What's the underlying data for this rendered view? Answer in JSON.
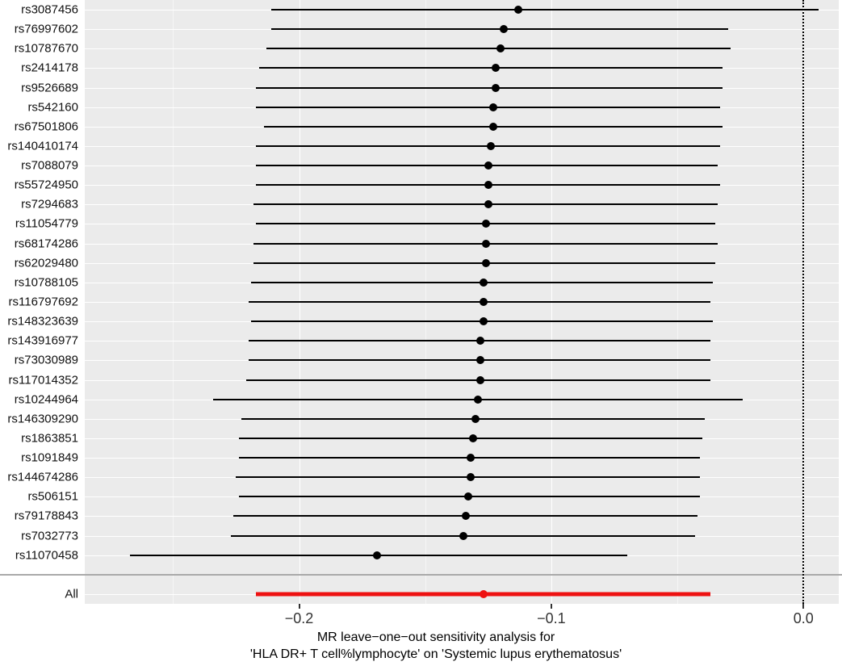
{
  "figure": {
    "xtitle_line1": "MR leave−one−out sensitivity analysis for",
    "xtitle_line2": "'HLA DR+ T cell%lymphocyte' on 'Systemic lupus erythematosus'"
  },
  "chart_data": {
    "type": "scatter",
    "subtype": "forest-leave-one-out",
    "title": "",
    "xlabel": "MR leave−one−out sensitivity analysis for 'HLA DR+ T cell%lymphocyte' on 'Systemic lupus erythematosus'",
    "ylabel": "",
    "xlim": [
      -0.285,
      0.014
    ],
    "xticks": [
      -0.2,
      -0.1,
      0.0
    ],
    "xtick_labels": [
      "−0.2",
      "−0.1",
      "0.0"
    ],
    "xticks_minor": [
      -0.25,
      -0.15,
      -0.05
    ],
    "zero_line": 0,
    "grid": true,
    "legend": "none",
    "panel_bg": "#EBEBEB",
    "grid_color": "#FFFFFF",
    "separator_color": "#A9A9A9",
    "point_color": "#000000",
    "all_color": "#EE1111",
    "rows": [
      {
        "label": "rs3087456",
        "estimate": -0.113,
        "lo": -0.211,
        "hi": 0.006
      },
      {
        "label": "rs76997602",
        "estimate": -0.119,
        "lo": -0.211,
        "hi": -0.03
      },
      {
        "label": "rs10787670",
        "estimate": -0.12,
        "lo": -0.213,
        "hi": -0.029
      },
      {
        "label": "rs2414178",
        "estimate": -0.122,
        "lo": -0.216,
        "hi": -0.032
      },
      {
        "label": "rs9526689",
        "estimate": -0.122,
        "lo": -0.217,
        "hi": -0.032
      },
      {
        "label": "rs542160",
        "estimate": -0.123,
        "lo": -0.217,
        "hi": -0.033
      },
      {
        "label": "rs67501806",
        "estimate": -0.123,
        "lo": -0.214,
        "hi": -0.032
      },
      {
        "label": "rs140410174",
        "estimate": -0.124,
        "lo": -0.217,
        "hi": -0.033
      },
      {
        "label": "rs7088079",
        "estimate": -0.125,
        "lo": -0.217,
        "hi": -0.034
      },
      {
        "label": "rs55724950",
        "estimate": -0.125,
        "lo": -0.217,
        "hi": -0.033
      },
      {
        "label": "rs7294683",
        "estimate": -0.125,
        "lo": -0.218,
        "hi": -0.034
      },
      {
        "label": "rs11054779",
        "estimate": -0.126,
        "lo": -0.217,
        "hi": -0.035
      },
      {
        "label": "rs68174286",
        "estimate": -0.126,
        "lo": -0.218,
        "hi": -0.034
      },
      {
        "label": "rs62029480",
        "estimate": -0.126,
        "lo": -0.218,
        "hi": -0.035
      },
      {
        "label": "rs10788105",
        "estimate": -0.127,
        "lo": -0.219,
        "hi": -0.036
      },
      {
        "label": "rs116797692",
        "estimate": -0.127,
        "lo": -0.22,
        "hi": -0.037
      },
      {
        "label": "rs148323639",
        "estimate": -0.127,
        "lo": -0.219,
        "hi": -0.036
      },
      {
        "label": "rs143916977",
        "estimate": -0.128,
        "lo": -0.22,
        "hi": -0.037
      },
      {
        "label": "rs73030989",
        "estimate": -0.128,
        "lo": -0.22,
        "hi": -0.037
      },
      {
        "label": "rs117014352",
        "estimate": -0.128,
        "lo": -0.221,
        "hi": -0.037
      },
      {
        "label": "rs10244964",
        "estimate": -0.129,
        "lo": -0.234,
        "hi": -0.024
      },
      {
        "label": "rs146309290",
        "estimate": -0.13,
        "lo": -0.223,
        "hi": -0.039
      },
      {
        "label": "rs1863851",
        "estimate": -0.131,
        "lo": -0.224,
        "hi": -0.04
      },
      {
        "label": "rs1091849",
        "estimate": -0.132,
        "lo": -0.224,
        "hi": -0.041
      },
      {
        "label": "rs144674286",
        "estimate": -0.132,
        "lo": -0.225,
        "hi": -0.041
      },
      {
        "label": "rs506151",
        "estimate": -0.133,
        "lo": -0.224,
        "hi": -0.041
      },
      {
        "label": "rs79178843",
        "estimate": -0.134,
        "lo": -0.226,
        "hi": -0.042
      },
      {
        "label": "rs7032773",
        "estimate": -0.135,
        "lo": -0.227,
        "hi": -0.043
      },
      {
        "label": "rs11070458",
        "estimate": -0.169,
        "lo": -0.267,
        "hi": -0.07
      },
      {
        "label": "All",
        "estimate": -0.127,
        "lo": -0.217,
        "hi": -0.037,
        "all": true
      }
    ]
  }
}
